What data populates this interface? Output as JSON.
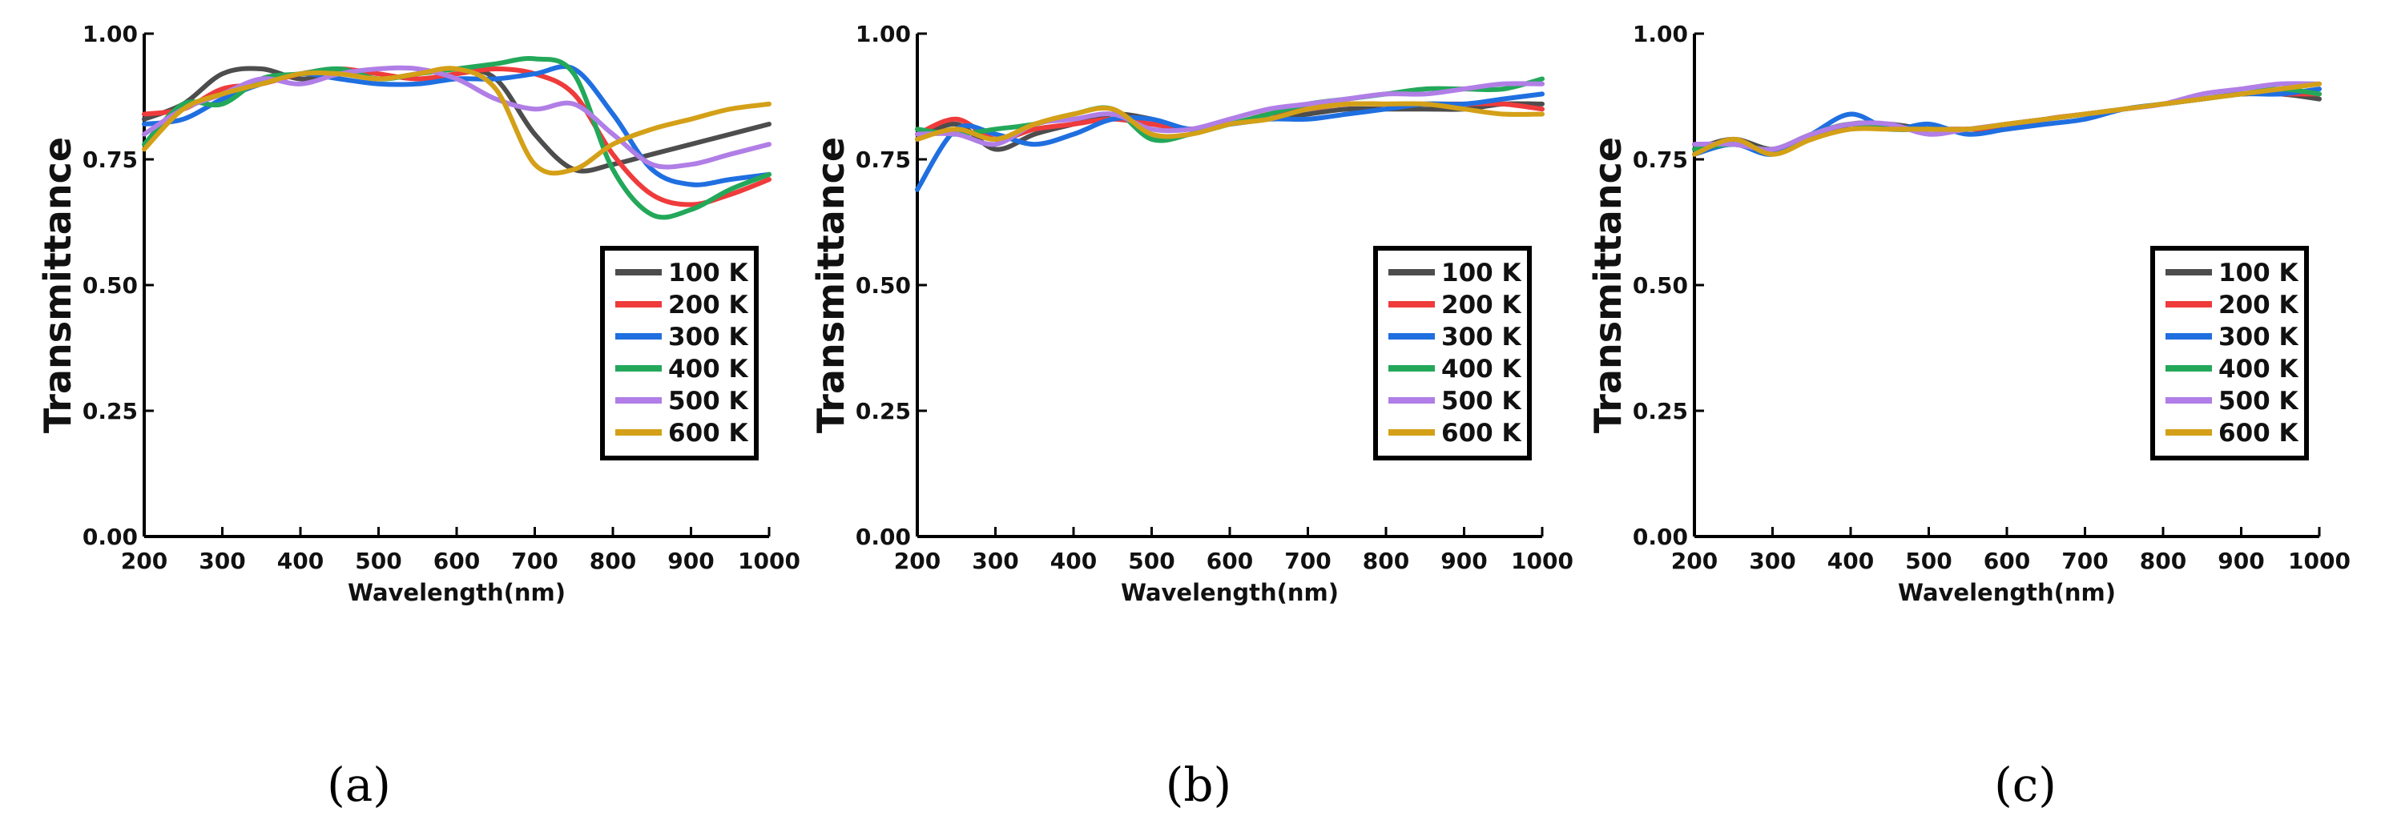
{
  "colors": {
    "100 K": "#4d4d4d",
    "200 K": "#ef3b3b",
    "300 K": "#1f6fe0",
    "400 K": "#23a85a",
    "500 K": "#b07ee6",
    "600 K": "#d4a017"
  },
  "chart_data": [
    {
      "type": "line",
      "panel_label": "(a)",
      "xlabel": "Wavelength(nm)",
      "ylabel": "Transmittance",
      "xlim": [
        200,
        1000
      ],
      "ylim": [
        0,
        1
      ],
      "x_ticks": [
        "200",
        "300",
        "400",
        "500",
        "600",
        "700",
        "800",
        "900",
        "1000"
      ],
      "y_ticks": [
        "0.00",
        "0.25",
        "0.50",
        "0.75",
        "1.00"
      ],
      "legend_position": "lower-right",
      "x": [
        200,
        250,
        300,
        350,
        400,
        450,
        500,
        550,
        600,
        650,
        700,
        750,
        800,
        850,
        900,
        950,
        1000
      ],
      "series": [
        {
          "name": "100 K",
          "values": [
            0.83,
            0.86,
            0.92,
            0.93,
            0.91,
            0.92,
            0.91,
            0.92,
            0.93,
            0.91,
            0.8,
            0.73,
            0.74,
            0.76,
            0.78,
            0.8,
            0.82
          ]
        },
        {
          "name": "200 K",
          "values": [
            0.84,
            0.85,
            0.89,
            0.9,
            0.92,
            0.93,
            0.92,
            0.91,
            0.92,
            0.93,
            0.92,
            0.88,
            0.76,
            0.68,
            0.66,
            0.68,
            0.71
          ]
        },
        {
          "name": "300 K",
          "values": [
            0.82,
            0.83,
            0.87,
            0.9,
            0.92,
            0.91,
            0.9,
            0.9,
            0.91,
            0.91,
            0.92,
            0.93,
            0.84,
            0.73,
            0.7,
            0.71,
            0.72
          ]
        },
        {
          "name": "400 K",
          "values": [
            0.78,
            0.86,
            0.86,
            0.91,
            0.92,
            0.93,
            0.91,
            0.92,
            0.93,
            0.94,
            0.95,
            0.92,
            0.73,
            0.64,
            0.65,
            0.69,
            0.72
          ]
        },
        {
          "name": "500 K",
          "values": [
            0.8,
            0.85,
            0.88,
            0.91,
            0.9,
            0.92,
            0.93,
            0.93,
            0.91,
            0.87,
            0.85,
            0.86,
            0.8,
            0.74,
            0.74,
            0.76,
            0.78
          ]
        },
        {
          "name": "600 K",
          "values": [
            0.77,
            0.85,
            0.88,
            0.9,
            0.92,
            0.92,
            0.91,
            0.92,
            0.93,
            0.89,
            0.74,
            0.73,
            0.78,
            0.81,
            0.83,
            0.85,
            0.86
          ]
        }
      ]
    },
    {
      "type": "line",
      "panel_label": "(b)",
      "xlabel": "Wavelength(nm)",
      "ylabel": "Transmittance",
      "xlim": [
        200,
        1000
      ],
      "ylim": [
        0,
        1
      ],
      "x_ticks": [
        "200",
        "300",
        "400",
        "500",
        "600",
        "700",
        "800",
        "900",
        "1000"
      ],
      "y_ticks": [
        "0.00",
        "0.25",
        "0.50",
        "0.75",
        "1.00"
      ],
      "legend_position": "lower-right",
      "x": [
        200,
        250,
        300,
        350,
        400,
        450,
        500,
        550,
        600,
        650,
        700,
        750,
        800,
        850,
        900,
        950,
        1000
      ],
      "series": [
        {
          "name": "100 K",
          "values": [
            0.79,
            0.82,
            0.77,
            0.8,
            0.82,
            0.84,
            0.83,
            0.81,
            0.82,
            0.83,
            0.84,
            0.85,
            0.85,
            0.85,
            0.85,
            0.86,
            0.86
          ]
        },
        {
          "name": "200 K",
          "values": [
            0.8,
            0.83,
            0.79,
            0.81,
            0.82,
            0.83,
            0.82,
            0.81,
            0.82,
            0.84,
            0.85,
            0.86,
            0.86,
            0.86,
            0.86,
            0.86,
            0.85
          ]
        },
        {
          "name": "300 K",
          "values": [
            0.69,
            0.81,
            0.8,
            0.78,
            0.8,
            0.83,
            0.83,
            0.81,
            0.82,
            0.83,
            0.83,
            0.84,
            0.85,
            0.86,
            0.86,
            0.87,
            0.88
          ]
        },
        {
          "name": "400 K",
          "values": [
            0.81,
            0.8,
            0.81,
            0.82,
            0.84,
            0.85,
            0.79,
            0.8,
            0.82,
            0.84,
            0.86,
            0.87,
            0.88,
            0.89,
            0.89,
            0.89,
            0.91
          ]
        },
        {
          "name": "500 K",
          "values": [
            0.8,
            0.8,
            0.78,
            0.82,
            0.83,
            0.84,
            0.81,
            0.81,
            0.83,
            0.85,
            0.86,
            0.87,
            0.88,
            0.88,
            0.89,
            0.9,
            0.9
          ]
        },
        {
          "name": "600 K",
          "values": [
            0.79,
            0.81,
            0.79,
            0.82,
            0.84,
            0.85,
            0.8,
            0.8,
            0.82,
            0.83,
            0.85,
            0.86,
            0.86,
            0.86,
            0.85,
            0.84,
            0.84
          ]
        }
      ]
    },
    {
      "type": "line",
      "panel_label": "(c)",
      "xlabel": "Wavelength(nm)",
      "ylabel": "Transmittance",
      "xlim": [
        200,
        1000
      ],
      "ylim": [
        0,
        1
      ],
      "x_ticks": [
        "200",
        "300",
        "400",
        "500",
        "600",
        "700",
        "800",
        "900",
        "1000"
      ],
      "y_ticks": [
        "0.00",
        "0.25",
        "0.50",
        "0.75",
        "1.00"
      ],
      "legend_position": "lower-right",
      "x": [
        200,
        250,
        300,
        350,
        400,
        450,
        500,
        550,
        600,
        650,
        700,
        750,
        800,
        850,
        900,
        950,
        1000
      ],
      "series": [
        {
          "name": "100 K",
          "values": [
            0.77,
            0.79,
            0.77,
            0.79,
            0.82,
            0.82,
            0.81,
            0.81,
            0.82,
            0.83,
            0.84,
            0.85,
            0.86,
            0.87,
            0.88,
            0.88,
            0.87
          ]
        },
        {
          "name": "200 K",
          "values": [
            0.78,
            0.78,
            0.77,
            0.8,
            0.82,
            0.81,
            0.81,
            0.81,
            0.81,
            0.83,
            0.84,
            0.85,
            0.86,
            0.87,
            0.88,
            0.88,
            0.88
          ]
        },
        {
          "name": "300 K",
          "values": [
            0.76,
            0.78,
            0.76,
            0.8,
            0.84,
            0.81,
            0.82,
            0.8,
            0.81,
            0.82,
            0.83,
            0.85,
            0.86,
            0.87,
            0.88,
            0.88,
            0.89
          ]
        },
        {
          "name": "400 K",
          "values": [
            0.77,
            0.78,
            0.77,
            0.8,
            0.82,
            0.81,
            0.81,
            0.81,
            0.82,
            0.83,
            0.84,
            0.85,
            0.86,
            0.87,
            0.88,
            0.89,
            0.88
          ]
        },
        {
          "name": "500 K",
          "values": [
            0.78,
            0.78,
            0.77,
            0.8,
            0.82,
            0.82,
            0.8,
            0.81,
            0.82,
            0.83,
            0.84,
            0.85,
            0.86,
            0.88,
            0.89,
            0.9,
            0.9
          ]
        },
        {
          "name": "600 K",
          "values": [
            0.76,
            0.79,
            0.76,
            0.79,
            0.81,
            0.81,
            0.81,
            0.81,
            0.82,
            0.83,
            0.84,
            0.85,
            0.86,
            0.87,
            0.88,
            0.89,
            0.9
          ]
        }
      ]
    }
  ]
}
